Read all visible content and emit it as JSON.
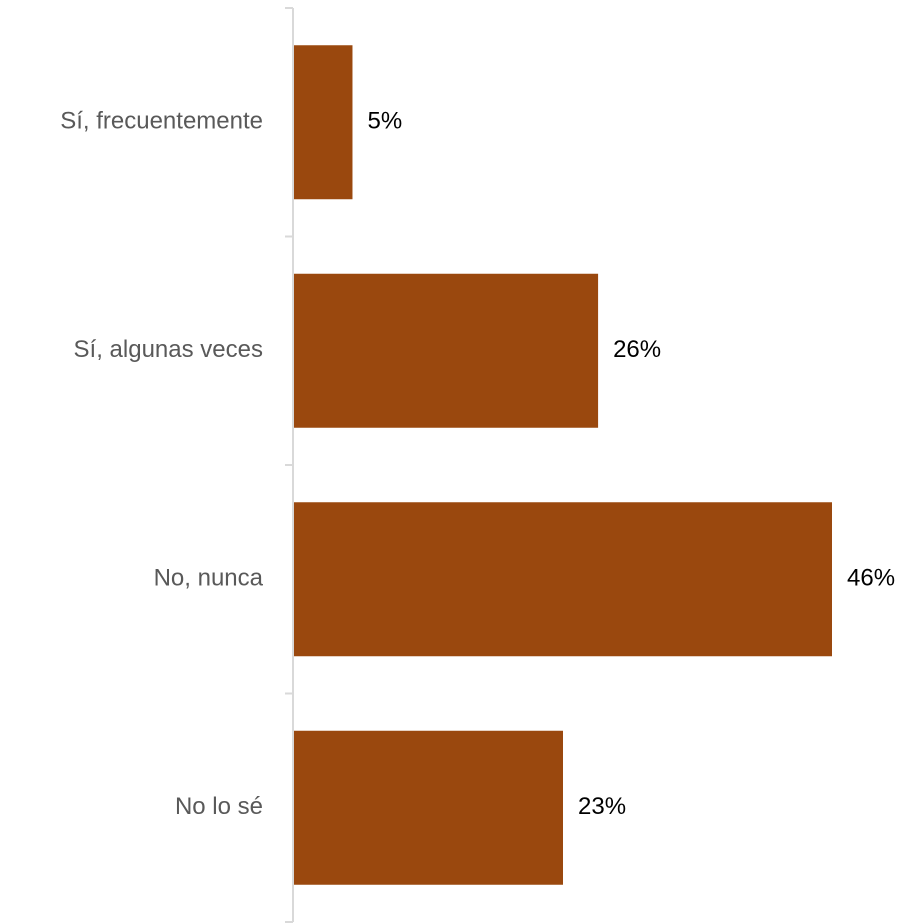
{
  "chart_data": {
    "type": "bar",
    "orientation": "horizontal",
    "categories": [
      "Sí, frecuentemente",
      "Sí, algunas veces",
      "No, nunca",
      "No lo sé"
    ],
    "values": [
      5,
      26,
      46,
      23
    ],
    "value_labels": [
      "5%",
      "26%",
      "46%",
      "23%"
    ],
    "unit": "%",
    "xlim": [
      0,
      46
    ],
    "grid": false,
    "legend": "none",
    "colors": {
      "bar": "#9A480E",
      "axis": "#D9D9D9",
      "category_text": "#595959",
      "value_text": "#000000"
    }
  }
}
